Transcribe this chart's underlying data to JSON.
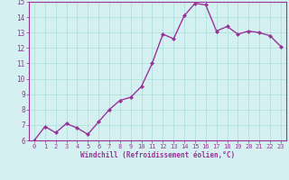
{
  "x": [
    0,
    1,
    2,
    3,
    4,
    5,
    6,
    7,
    8,
    9,
    10,
    11,
    12,
    13,
    14,
    15,
    16,
    17,
    18,
    19,
    20,
    21,
    22,
    23
  ],
  "y": [
    6.0,
    6.9,
    6.5,
    7.1,
    6.8,
    6.4,
    7.2,
    8.0,
    8.6,
    8.8,
    9.5,
    11.0,
    12.9,
    12.6,
    14.1,
    14.9,
    14.8,
    13.1,
    13.4,
    12.9,
    13.1,
    13.0,
    12.8,
    12.1
  ],
  "line_color": "#993399",
  "marker": "D",
  "marker_size": 2,
  "line_width": 1.0,
  "bg_color": "#d5f0f0",
  "grid_color": "#aadddd",
  "xlabel": "Windchill (Refroidissement éolien,°C)",
  "xlabel_color": "#993399",
  "tick_color": "#993399",
  "ylim": [
    6,
    15
  ],
  "xlim_min": -0.5,
  "xlim_max": 23.5,
  "yticks": [
    6,
    7,
    8,
    9,
    10,
    11,
    12,
    13,
    14,
    15
  ],
  "xticks": [
    0,
    1,
    2,
    3,
    4,
    5,
    6,
    7,
    8,
    9,
    10,
    11,
    12,
    13,
    14,
    15,
    16,
    17,
    18,
    19,
    20,
    21,
    22,
    23
  ],
  "xlabel_fontsize": 5.5,
  "xtick_fontsize": 5.0,
  "ytick_fontsize": 5.5,
  "xlabel_fontweight": "bold"
}
